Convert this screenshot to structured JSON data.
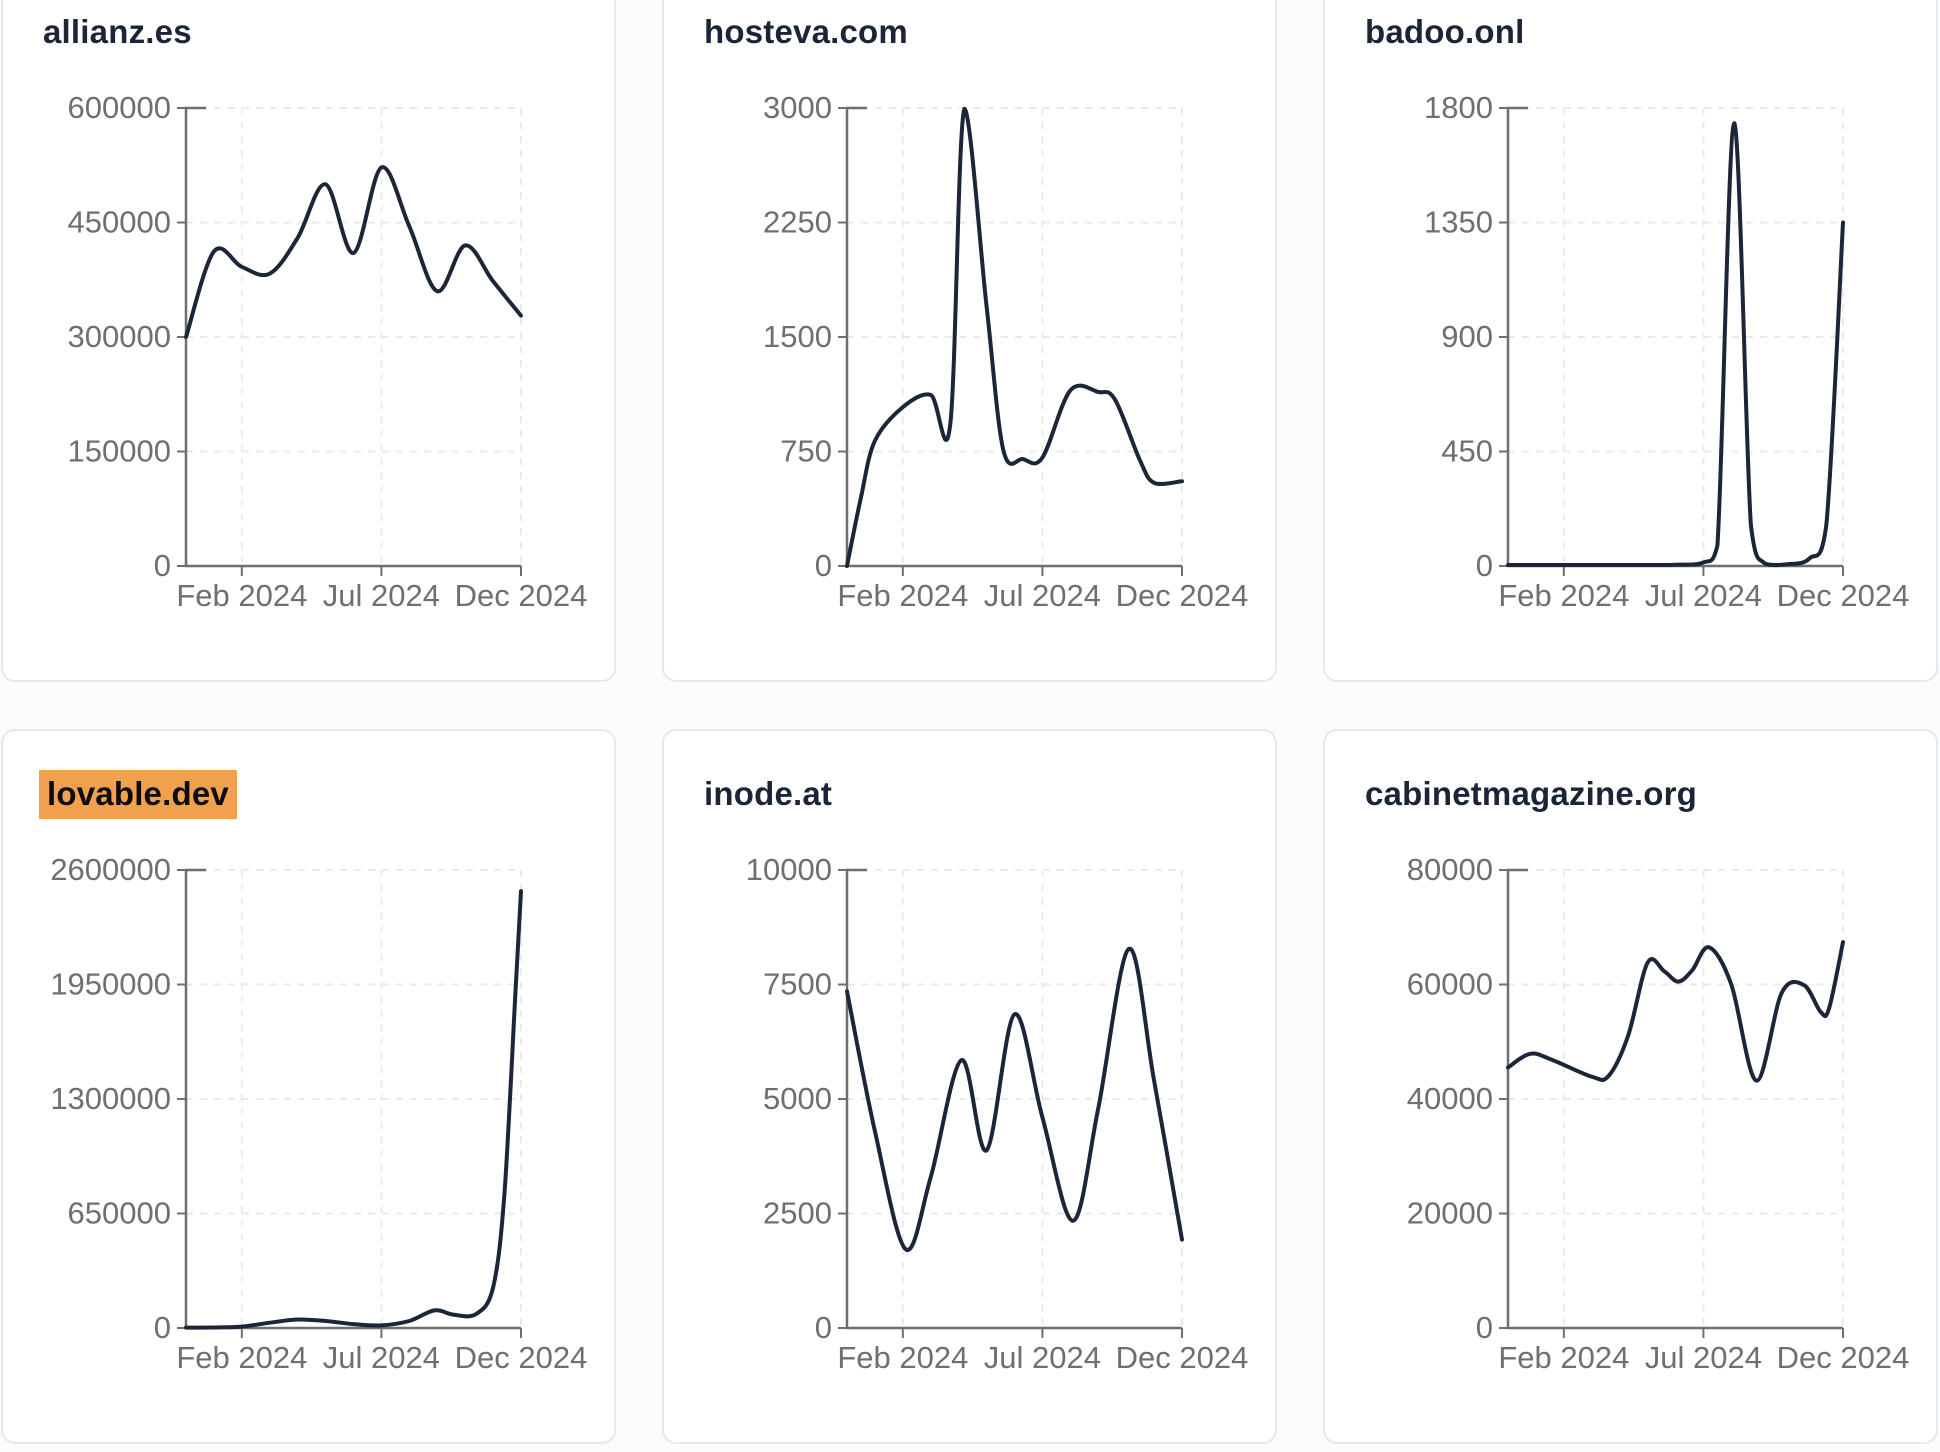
{
  "page": {
    "description": "Grid of six website traffic trend cards, Jan 2024 - Dec 2024"
  },
  "styles": {
    "page_bg": "#fcfcfd",
    "card_bg": "#ffffff",
    "card_border": "#e4e8f1",
    "title_color": "#1c2438",
    "line_color": "#1d2539",
    "axis_color": "#6f6f6f",
    "tick_label_color": "#6f6f6f",
    "grid_color": "#e9eaee",
    "highlight_bg": "#f0a04e",
    "highlight_text": "#0c0c0c"
  },
  "chart_data": [
    {
      "type": "line",
      "title": "allianz.es",
      "highlighted": false,
      "ylim": [
        0,
        600000
      ],
      "y_ticks": [
        0,
        150000,
        300000,
        450000,
        600000
      ],
      "x_ticks": [
        {
          "label": "Feb 2024",
          "m": 2
        },
        {
          "label": "Jul 2024",
          "m": 7
        },
        {
          "label": "Dec 2024",
          "m": 12
        }
      ],
      "x_unit": "months since Jan 2024 start (0 = chart start, 12 = end Dec 2024)",
      "points": [
        [
          0,
          300000
        ],
        [
          1,
          412000
        ],
        [
          2,
          392000
        ],
        [
          3,
          383000
        ],
        [
          4,
          430000
        ],
        [
          5,
          500000
        ],
        [
          6,
          410000
        ],
        [
          7,
          522000
        ],
        [
          8,
          445000
        ],
        [
          9,
          360000
        ],
        [
          10,
          420000
        ],
        [
          11,
          373000
        ],
        [
          12,
          328000
        ]
      ]
    },
    {
      "type": "line",
      "title": "hosteva.com",
      "highlighted": false,
      "ylim": [
        0,
        3000
      ],
      "y_ticks": [
        0,
        750,
        1500,
        2250,
        3000
      ],
      "x_ticks": [
        {
          "label": "Feb 2024",
          "m": 2
        },
        {
          "label": "Jul 2024",
          "m": 7
        },
        {
          "label": "Dec 2024",
          "m": 12
        }
      ],
      "x_unit": "months since Jan 2024 start (0 = chart start, 12 = end Dec 2024)",
      "points": [
        [
          0,
          0
        ],
        [
          0.5,
          450
        ],
        [
          1,
          820
        ],
        [
          2,
          1040
        ],
        [
          3,
          1120
        ],
        [
          3.7,
          930
        ],
        [
          4.2,
          2995
        ],
        [
          5,
          1700
        ],
        [
          5.6,
          760
        ],
        [
          6.3,
          700
        ],
        [
          7,
          710
        ],
        [
          8,
          1150
        ],
        [
          9,
          1140
        ],
        [
          9.6,
          1090
        ],
        [
          10.5,
          690
        ],
        [
          11,
          545
        ],
        [
          12,
          555
        ]
      ]
    },
    {
      "type": "line",
      "title": "badoo.onl",
      "highlighted": false,
      "ylim": [
        0,
        1800
      ],
      "y_ticks": [
        0,
        450,
        900,
        1350,
        1800
      ],
      "x_ticks": [
        {
          "label": "Feb 2024",
          "m": 2
        },
        {
          "label": "Jul 2024",
          "m": 7
        },
        {
          "label": "Dec 2024",
          "m": 12
        }
      ],
      "x_unit": "months since Jan 2024 start (0 = chart start, 12 = end Dec 2024)",
      "points": [
        [
          0,
          4
        ],
        [
          1,
          4
        ],
        [
          2,
          4
        ],
        [
          3,
          4
        ],
        [
          4,
          4
        ],
        [
          5,
          4
        ],
        [
          6,
          5
        ],
        [
          7,
          14
        ],
        [
          7.5,
          80
        ],
        [
          8.1,
          1740
        ],
        [
          8.7,
          160
        ],
        [
          9.2,
          10
        ],
        [
          10,
          7
        ],
        [
          10.8,
          30
        ],
        [
          11.4,
          160
        ],
        [
          12,
          1350
        ]
      ]
    },
    {
      "type": "line",
      "title": "lovable.dev",
      "highlighted": true,
      "ylim": [
        0,
        2600000
      ],
      "y_ticks": [
        0,
        650000,
        1300000,
        1950000,
        2600000
      ],
      "x_ticks": [
        {
          "label": "Feb 2024",
          "m": 2
        },
        {
          "label": "Jul 2024",
          "m": 7
        },
        {
          "label": "Dec 2024",
          "m": 12
        }
      ],
      "x_unit": "months since Jan 2024 start (0 = chart start, 12 = end Dec 2024)",
      "points": [
        [
          0,
          2000
        ],
        [
          1,
          3000
        ],
        [
          2,
          8000
        ],
        [
          3,
          30000
        ],
        [
          4,
          48000
        ],
        [
          5,
          40000
        ],
        [
          6,
          22000
        ],
        [
          7,
          15000
        ],
        [
          8,
          40000
        ],
        [
          8.9,
          100000
        ],
        [
          9.6,
          75000
        ],
        [
          10.4,
          80000
        ],
        [
          11,
          230000
        ],
        [
          11.4,
          750000
        ],
        [
          11.8,
          1900000
        ],
        [
          12,
          2480000
        ]
      ]
    },
    {
      "type": "line",
      "title": "inode.at",
      "highlighted": false,
      "ylim": [
        0,
        10000
      ],
      "y_ticks": [
        0,
        2500,
        5000,
        7500,
        10000
      ],
      "x_ticks": [
        {
          "label": "Feb 2024",
          "m": 2
        },
        {
          "label": "Jul 2024",
          "m": 7
        },
        {
          "label": "Dec 2024",
          "m": 12
        }
      ],
      "x_unit": "months since Jan 2024 start (0 = chart start, 12 = end Dec 2024)",
      "points": [
        [
          0,
          7350
        ],
        [
          1,
          4300
        ],
        [
          2.1,
          1720
        ],
        [
          3,
          3300
        ],
        [
          4.1,
          5850
        ],
        [
          5,
          3880
        ],
        [
          6,
          6850
        ],
        [
          7,
          4600
        ],
        [
          8.1,
          2340
        ],
        [
          9,
          4800
        ],
        [
          10.1,
          8280
        ],
        [
          11,
          5400
        ],
        [
          12,
          1930
        ]
      ]
    },
    {
      "type": "line",
      "title": "cabinetmagazine.org",
      "highlighted": false,
      "ylim": [
        0,
        80000
      ],
      "y_ticks": [
        0,
        20000,
        40000,
        60000,
        80000
      ],
      "x_ticks": [
        {
          "label": "Feb 2024",
          "m": 2
        },
        {
          "label": "Jul 2024",
          "m": 7
        },
        {
          "label": "Dec 2024",
          "m": 12
        }
      ],
      "x_unit": "months since Jan 2024 start (0 = chart start, 12 = end Dec 2024)",
      "points": [
        [
          0,
          45500
        ],
        [
          0.8,
          47900
        ],
        [
          1.6,
          46800
        ],
        [
          3,
          43900
        ],
        [
          3.6,
          44000
        ],
        [
          4.3,
          51000
        ],
        [
          5,
          63800
        ],
        [
          5.6,
          62300
        ],
        [
          6.1,
          60500
        ],
        [
          6.6,
          62500
        ],
        [
          7.2,
          66500
        ],
        [
          8,
          60000
        ],
        [
          8.9,
          43200
        ],
        [
          9.8,
          58500
        ],
        [
          10.6,
          59900
        ],
        [
          11.2,
          55200
        ],
        [
          11.5,
          55800
        ],
        [
          12,
          67400
        ]
      ]
    }
  ]
}
